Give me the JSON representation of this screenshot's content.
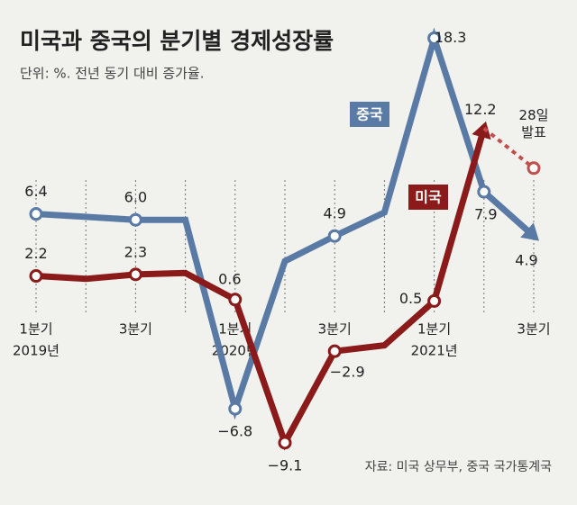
{
  "chart_data": {
    "type": "line",
    "title": "미국과 중국의 분기별 경제성장률",
    "subtitle": "단위: %. 전년 동기 대비 증가율.",
    "source": "자료: 미국 상무부, 중국 국가통계국",
    "categories": [
      "1분기",
      null,
      "3분기",
      null,
      "1분기",
      null,
      "3분기",
      null,
      "1분기",
      null,
      "3분기"
    ],
    "years": [
      "2019년",
      "2020년",
      "2021년"
    ],
    "ylim": [
      -11,
      19
    ],
    "series": [
      {
        "name": "중국",
        "color": "#5a7aa6",
        "values": [
          6.4,
          6.2,
          6.0,
          6.0,
          -6.8,
          3.2,
          4.9,
          6.5,
          18.3,
          7.9,
          4.9
        ],
        "value_labels": [
          "6.4",
          null,
          "6.0",
          null,
          "−6.8",
          null,
          "4.9",
          null,
          "18.3",
          "7.9",
          "4.9"
        ]
      },
      {
        "name": "미국",
        "color": "#8b1a1a",
        "values": [
          2.2,
          2.0,
          2.3,
          2.4,
          0.6,
          -9.1,
          -2.9,
          -2.5,
          0.5,
          12.2,
          null
        ],
        "value_labels": [
          "2.2",
          null,
          "2.3",
          null,
          "0.6",
          "−9.1",
          "−2.9",
          null,
          "0.5",
          "12.2",
          null
        ]
      },
      {
        "name": "28일 발표",
        "color": "#c0504d",
        "dashed": true,
        "values": [
          null,
          null,
          null,
          null,
          null,
          null,
          null,
          null,
          null,
          12.2,
          9.5
        ]
      }
    ]
  }
}
